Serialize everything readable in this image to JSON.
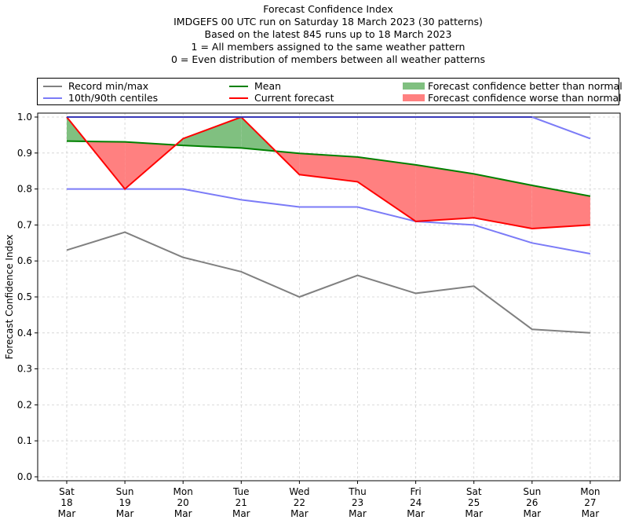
{
  "chart_data": {
    "type": "line",
    "title": "Forecast Confidence Index",
    "subtitle_lines": [
      "IMDGEFS 00 UTC run on Saturday 18 March 2023 (30 patterns)",
      "Based on the latest 845 runs up to 18 March 2023",
      "1 = All members assigned to the same weather pattern",
      "0 = Even distribution of members between all weather patterns"
    ],
    "xlabel": "",
    "ylabel": "Forecast Confidence Index",
    "ylim": [
      0,
      1.0
    ],
    "yticks": [
      "0.0",
      "0.1",
      "0.2",
      "0.3",
      "0.4",
      "0.5",
      "0.6",
      "0.7",
      "0.8",
      "0.9",
      "1.0"
    ],
    "grid": true,
    "legend_placement": "top",
    "categories": [
      [
        "Sat",
        "18",
        "Mar"
      ],
      [
        "Sun",
        "19",
        "Mar"
      ],
      [
        "Mon",
        "20",
        "Mar"
      ],
      [
        "Tue",
        "21",
        "Mar"
      ],
      [
        "Wed",
        "22",
        "Mar"
      ],
      [
        "Thu",
        "23",
        "Mar"
      ],
      [
        "Fri",
        "24",
        "Mar"
      ],
      [
        "Sat",
        "25",
        "Mar"
      ],
      [
        "Sun",
        "26",
        "Mar"
      ],
      [
        "Mon",
        "27",
        "Mar"
      ]
    ],
    "series": [
      {
        "name": "Record min/max",
        "role": "record_max",
        "color": "#808080",
        "values": [
          1.0,
          1.0,
          1.0,
          1.0,
          1.0,
          1.0,
          1.0,
          1.0,
          1.0,
          1.0
        ]
      },
      {
        "name": "Record min/max",
        "role": "record_min",
        "color": "#808080",
        "values": [
          0.63,
          0.68,
          0.61,
          0.57,
          0.5,
          0.56,
          0.51,
          0.53,
          0.41,
          0.4
        ]
      },
      {
        "name": "10th/90th centiles",
        "role": "p90",
        "color": "#7b7bf7",
        "values": [
          1.0,
          1.0,
          1.0,
          1.0,
          1.0,
          1.0,
          1.0,
          1.0,
          1.0,
          0.94
        ]
      },
      {
        "name": "10th/90th centiles",
        "role": "p10",
        "color": "#7b7bf7",
        "values": [
          0.8,
          0.8,
          0.8,
          0.77,
          0.75,
          0.75,
          0.71,
          0.7,
          0.65,
          0.62
        ]
      },
      {
        "name": "Mean",
        "role": "mean",
        "color": "#008000",
        "values": [
          0.933,
          0.931,
          0.921,
          0.914,
          0.899,
          0.889,
          0.867,
          0.842,
          0.81,
          0.78
        ]
      },
      {
        "name": "Current forecast",
        "role": "current",
        "color": "#ff0000",
        "values": [
          1.0,
          0.8,
          0.94,
          1.0,
          0.84,
          0.82,
          0.71,
          0.72,
          0.69,
          0.7
        ]
      }
    ],
    "fills": [
      {
        "name": "Forecast confidence better than normal",
        "color": "#80c080"
      },
      {
        "name": "Forecast confidence worse than normal",
        "color": "#ff8080"
      }
    ],
    "legend": [
      {
        "label": "Record min/max",
        "kind": "line",
        "color": "#808080"
      },
      {
        "label": "10th/90th centiles",
        "kind": "line",
        "color": "#7b7bf7"
      },
      {
        "label": "Mean",
        "kind": "line",
        "color": "#008000"
      },
      {
        "label": "Current forecast",
        "kind": "line",
        "color": "#ff0000"
      },
      {
        "label": "Forecast confidence better than normal",
        "kind": "patch",
        "color": "#80c080"
      },
      {
        "label": "Forecast confidence worse than normal",
        "kind": "patch",
        "color": "#ff8080"
      }
    ]
  }
}
